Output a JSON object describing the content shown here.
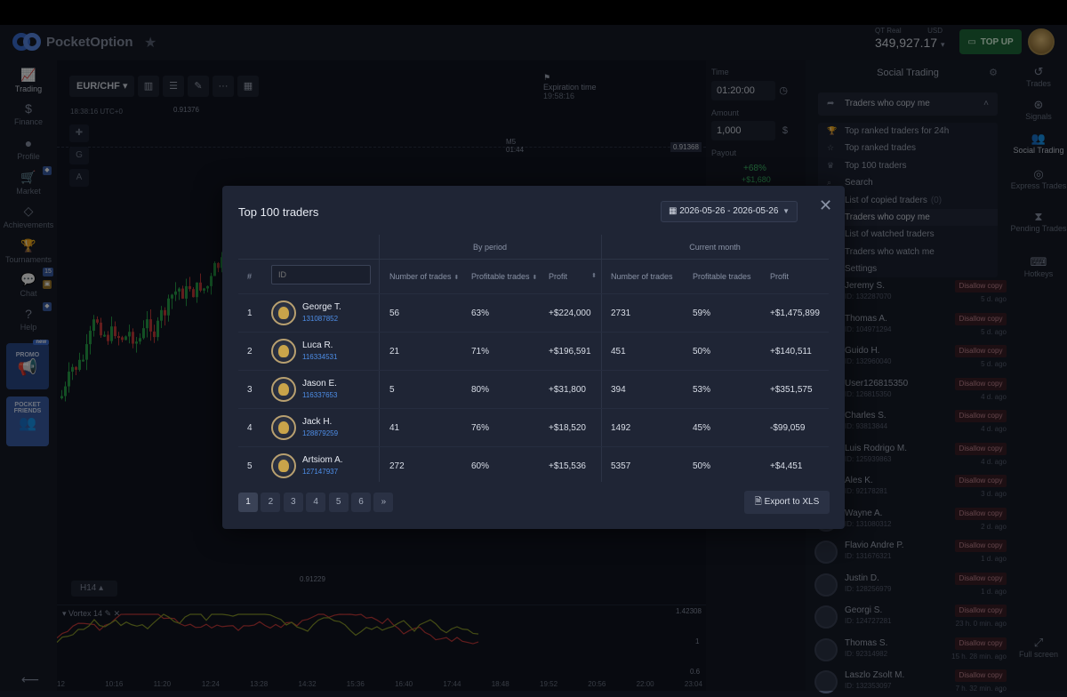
{
  "header": {
    "logo_text": "PocketOption",
    "account_type": "QT Real",
    "currency": "USD",
    "balance": "349,927.17",
    "topup_label": "TOP UP"
  },
  "leftbar": {
    "items": [
      {
        "label": "Trading"
      },
      {
        "label": "Finance"
      },
      {
        "label": "Profile"
      },
      {
        "label": "Market"
      },
      {
        "label": "Achievements"
      },
      {
        "label": "Tournaments"
      },
      {
        "label": "Chat"
      },
      {
        "label": "Help"
      }
    ],
    "chat_badge": "15",
    "promo_new": "new",
    "promo_label": "PROMO",
    "friends_label": "POCKET FRIENDS"
  },
  "chart": {
    "pair": "EUR/CHF",
    "time": "18:38:16 UTC+0",
    "price_top": "0.91376",
    "price_current": "0.91368",
    "price_low": "0.91229",
    "expiration_label": "Expiration time",
    "expiration_time": "19:58:16",
    "marker_label": "M5",
    "marker_time": "01:44",
    "timeframe": "H14",
    "indicator": "Vortex 14",
    "indicator_vals": [
      "1.42308",
      "1",
      "0.6"
    ],
    "x_ticks": [
      "12",
      "10:16",
      "11:20",
      "12:24",
      "13:28",
      "14:32",
      "15:36",
      "16:40",
      "17:44",
      "18:48",
      "19:52",
      "20:56",
      "22:00",
      "23:04"
    ]
  },
  "trade_panel": {
    "time_label": "Time",
    "time_value": "01:20:00",
    "amount_label": "Amount",
    "amount_value": "1,000",
    "payout_label": "Payout",
    "payout_pct": "+68%",
    "payout_amt": "+$1,680"
  },
  "social": {
    "title": "Social Trading",
    "select_value": "Traders who copy me",
    "dropdown": [
      {
        "label": "Top ranked traders for 24h",
        "icon": "trophy-icon"
      },
      {
        "label": "Top ranked trades",
        "icon": "star-icon"
      },
      {
        "label": "Top 100 traders",
        "icon": "cup-icon"
      },
      {
        "label": "Search",
        "icon": "search-icon"
      },
      {
        "label": "List of copied traders",
        "count": "(0)",
        "icon": "list-icon"
      },
      {
        "label": "Traders who copy me",
        "icon": "copy-icon"
      },
      {
        "label": "List of watched traders",
        "icon": "eye-icon"
      },
      {
        "label": "Traders who watch me",
        "icon": "eye-icon"
      },
      {
        "label": "Settings",
        "icon": "gear-icon"
      }
    ],
    "disallow_label": "Disallow copy",
    "copiers": [
      {
        "name": "Jeremy S.",
        "id": "ID: 132287070",
        "ago": "5 d. ago"
      },
      {
        "name": "Thomas A.",
        "id": "ID: 104971294",
        "ago": "5 d. ago"
      },
      {
        "name": "Guido H.",
        "id": "ID: 132960040",
        "ago": "5 d. ago"
      },
      {
        "name": "User126815350",
        "id": "ID: 126815350",
        "ago": "4 d. ago"
      },
      {
        "name": "Charles S.",
        "id": "ID: 93813844",
        "ago": "4 d. ago"
      },
      {
        "name": "Luis Rodrigo M.",
        "id": "ID: 125939863",
        "ago": "4 d. ago"
      },
      {
        "name": "Ales K.",
        "id": "ID: 92178281",
        "ago": "3 d. ago"
      },
      {
        "name": "Wayne A.",
        "id": "ID: 131080312",
        "ago": "2 d. ago"
      },
      {
        "name": "Flavio Andre P.",
        "id": "ID: 131676321",
        "ago": "1 d. ago"
      },
      {
        "name": "Justin D.",
        "id": "ID: 128256979",
        "ago": "1 d. ago"
      },
      {
        "name": "Georgi S.",
        "id": "ID: 124727281",
        "ago": "23 h. 0 min. ago"
      },
      {
        "name": "Thomas S.",
        "id": "ID: 92314982",
        "ago": "15 h. 28 min. ago"
      },
      {
        "name": "Laszlo Zsolt M.",
        "id": "ID: 132353097",
        "ago": "7 h. 32 min. ago"
      }
    ]
  },
  "rightbar": {
    "items": [
      {
        "label": "Trades"
      },
      {
        "label": "Signals"
      },
      {
        "label": "Social Trading"
      },
      {
        "label": "Express Trades"
      },
      {
        "label": "Pending Trades"
      },
      {
        "label": "Hotkeys"
      }
    ],
    "fullscreen_label": "Full screen"
  },
  "modal": {
    "title": "Top 100 traders",
    "date_range": "2026-05-26 - 2026-05-26",
    "group_by_period": "By period",
    "group_current_month": "Current month",
    "columns": {
      "rank": "#",
      "num_trades": "Number of trades",
      "profitable": "Profitable trades",
      "profit": "Profit",
      "num_trades_m": "Number of trades",
      "profitable_m": "Profitable trades",
      "profit_m": "Profit"
    },
    "id_placeholder": "ID",
    "rows": [
      {
        "rank": "1",
        "name": "George T.",
        "uid": "131087852",
        "trades": "56",
        "profitable": "63%",
        "profit": "+$224,000",
        "trades_m": "2731",
        "profitable_m": "59%",
        "profit_m": "+$1,475,899"
      },
      {
        "rank": "2",
        "name": "Luca R.",
        "uid": "116334531",
        "trades": "21",
        "profitable": "71%",
        "profit": "+$196,591",
        "trades_m": "451",
        "profitable_m": "50%",
        "profit_m": "+$140,511"
      },
      {
        "rank": "3",
        "name": "Jason E.",
        "uid": "116337653",
        "trades": "5",
        "profitable": "80%",
        "profit": "+$31,800",
        "trades_m": "394",
        "profitable_m": "53%",
        "profit_m": "+$351,575"
      },
      {
        "rank": "4",
        "name": "Jack H.",
        "uid": "128879259",
        "trades": "41",
        "profitable": "76%",
        "profit": "+$18,520",
        "trades_m": "1492",
        "profitable_m": "45%",
        "profit_m": "-$99,059"
      },
      {
        "rank": "5",
        "name": "Artsiom A.",
        "uid": "127147937",
        "trades": "272",
        "profitable": "60%",
        "profit": "+$15,536",
        "trades_m": "5357",
        "profitable_m": "50%",
        "profit_m": "+$4,451"
      }
    ],
    "pages": [
      "1",
      "2",
      "3",
      "4",
      "5",
      "6",
      "»"
    ],
    "export_label": "Export to XLS"
  }
}
